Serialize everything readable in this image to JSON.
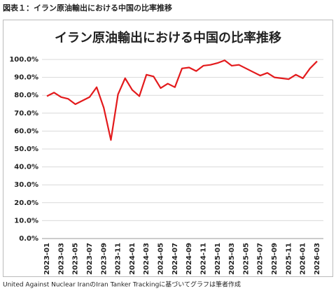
{
  "header": {
    "title": "図表１：イラン原油輸出における中国の比率推移"
  },
  "chart_data": {
    "type": "line",
    "title": "イラン原油輸出における中国の比率推移",
    "categories": [
      "2023-01",
      null,
      "2023-03",
      null,
      "2023-05",
      null,
      "2023-07",
      null,
      "2023-09",
      null,
      "2023-11",
      null,
      "2024-01",
      null,
      "2024-03",
      null,
      "2024-05",
      null,
      "2024-07",
      null,
      "2024-09",
      null,
      "2024-11",
      null,
      "2025-01",
      null,
      "2025-03",
      null,
      "2025-05",
      null,
      "2025-07",
      null,
      "2025-09",
      null,
      "2025-11",
      null,
      "2026-01",
      null,
      "2026-03"
    ],
    "values": [
      79.5,
      81.5,
      79,
      78,
      75,
      77,
      79,
      84.5,
      73,
      55,
      80.5,
      89.5,
      83,
      79.5,
      91.5,
      90.5,
      84,
      86.5,
      84.5,
      95,
      95.5,
      93.5,
      96.5,
      97,
      98,
      99.5,
      96.5,
      97,
      95,
      93,
      91,
      92.5,
      90,
      89.5,
      89,
      91.5,
      89.5,
      95,
      99
    ],
    "color": "#e31a1c",
    "ylim": [
      0,
      100
    ],
    "yticks": [
      {
        "value": 0,
        "label": "0.0%"
      },
      {
        "value": 10,
        "label": "10.0%"
      },
      {
        "value": 20,
        "label": "20.0%"
      },
      {
        "value": 30,
        "label": "30.0%"
      },
      {
        "value": 40,
        "label": "40.0%"
      },
      {
        "value": 50,
        "label": "50.0%"
      },
      {
        "value": 60,
        "label": "60.0%"
      },
      {
        "value": 70,
        "label": "70.0%"
      },
      {
        "value": 80,
        "label": "80.0%"
      },
      {
        "value": 90,
        "label": "90.0%"
      },
      {
        "value": 100,
        "label": "100.0%"
      }
    ],
    "grid": true
  },
  "footer": {
    "source": "United Against Nuclear IranのIran Tanker Trackingに基づいてグラフは筆者作成"
  }
}
